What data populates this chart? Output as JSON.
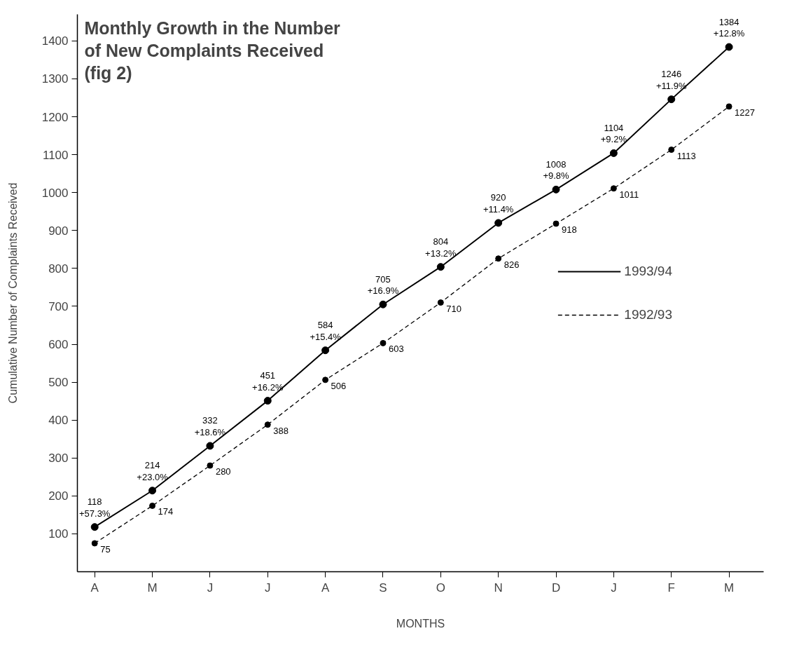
{
  "chart_data": {
    "type": "line",
    "title": "Monthly Growth in the Number\nof New Complaints Received\n(fig 2)",
    "xlabel": "MONTHS",
    "ylabel": "Cumulative Number of Complaints Received",
    "categories": [
      "A",
      "M",
      "J",
      "J",
      "A",
      "S",
      "O",
      "N",
      "D",
      "J",
      "F",
      "M"
    ],
    "ylim": [
      0,
      1470
    ],
    "yticks": [
      100,
      200,
      300,
      400,
      500,
      600,
      700,
      800,
      900,
      1000,
      1100,
      1200,
      1300,
      1400
    ],
    "grid": false,
    "legend": "right",
    "marker": "circle",
    "series": [
      {
        "name": "1993/94",
        "color": "#000000",
        "line_style": "solid",
        "values": [
          118,
          214,
          332,
          451,
          584,
          705,
          804,
          920,
          1008,
          1104,
          1246,
          1384
        ],
        "value_labels": [
          "118\n+57.3%",
          "214\n+23.0%",
          "332\n+18.6%",
          "451\n+16.2%",
          "584\n+15.4%",
          "705\n+16.9%",
          "804\n+13.2%",
          "920\n+11.4%",
          "1008\n+9.8%",
          "1104\n+9.2%",
          "1246\n+11.9%",
          "1384\n+12.8%"
        ]
      },
      {
        "name": "1992/93",
        "color": "#000000",
        "line_style": "dashed",
        "values": [
          75,
          174,
          280,
          388,
          506,
          603,
          710,
          826,
          918,
          1011,
          1113,
          1227
        ],
        "value_labels": [
          "75",
          "174",
          "280",
          "388",
          "506",
          "603",
          "710",
          "826",
          "918",
          "1011",
          "1113",
          "1227"
        ]
      }
    ]
  }
}
